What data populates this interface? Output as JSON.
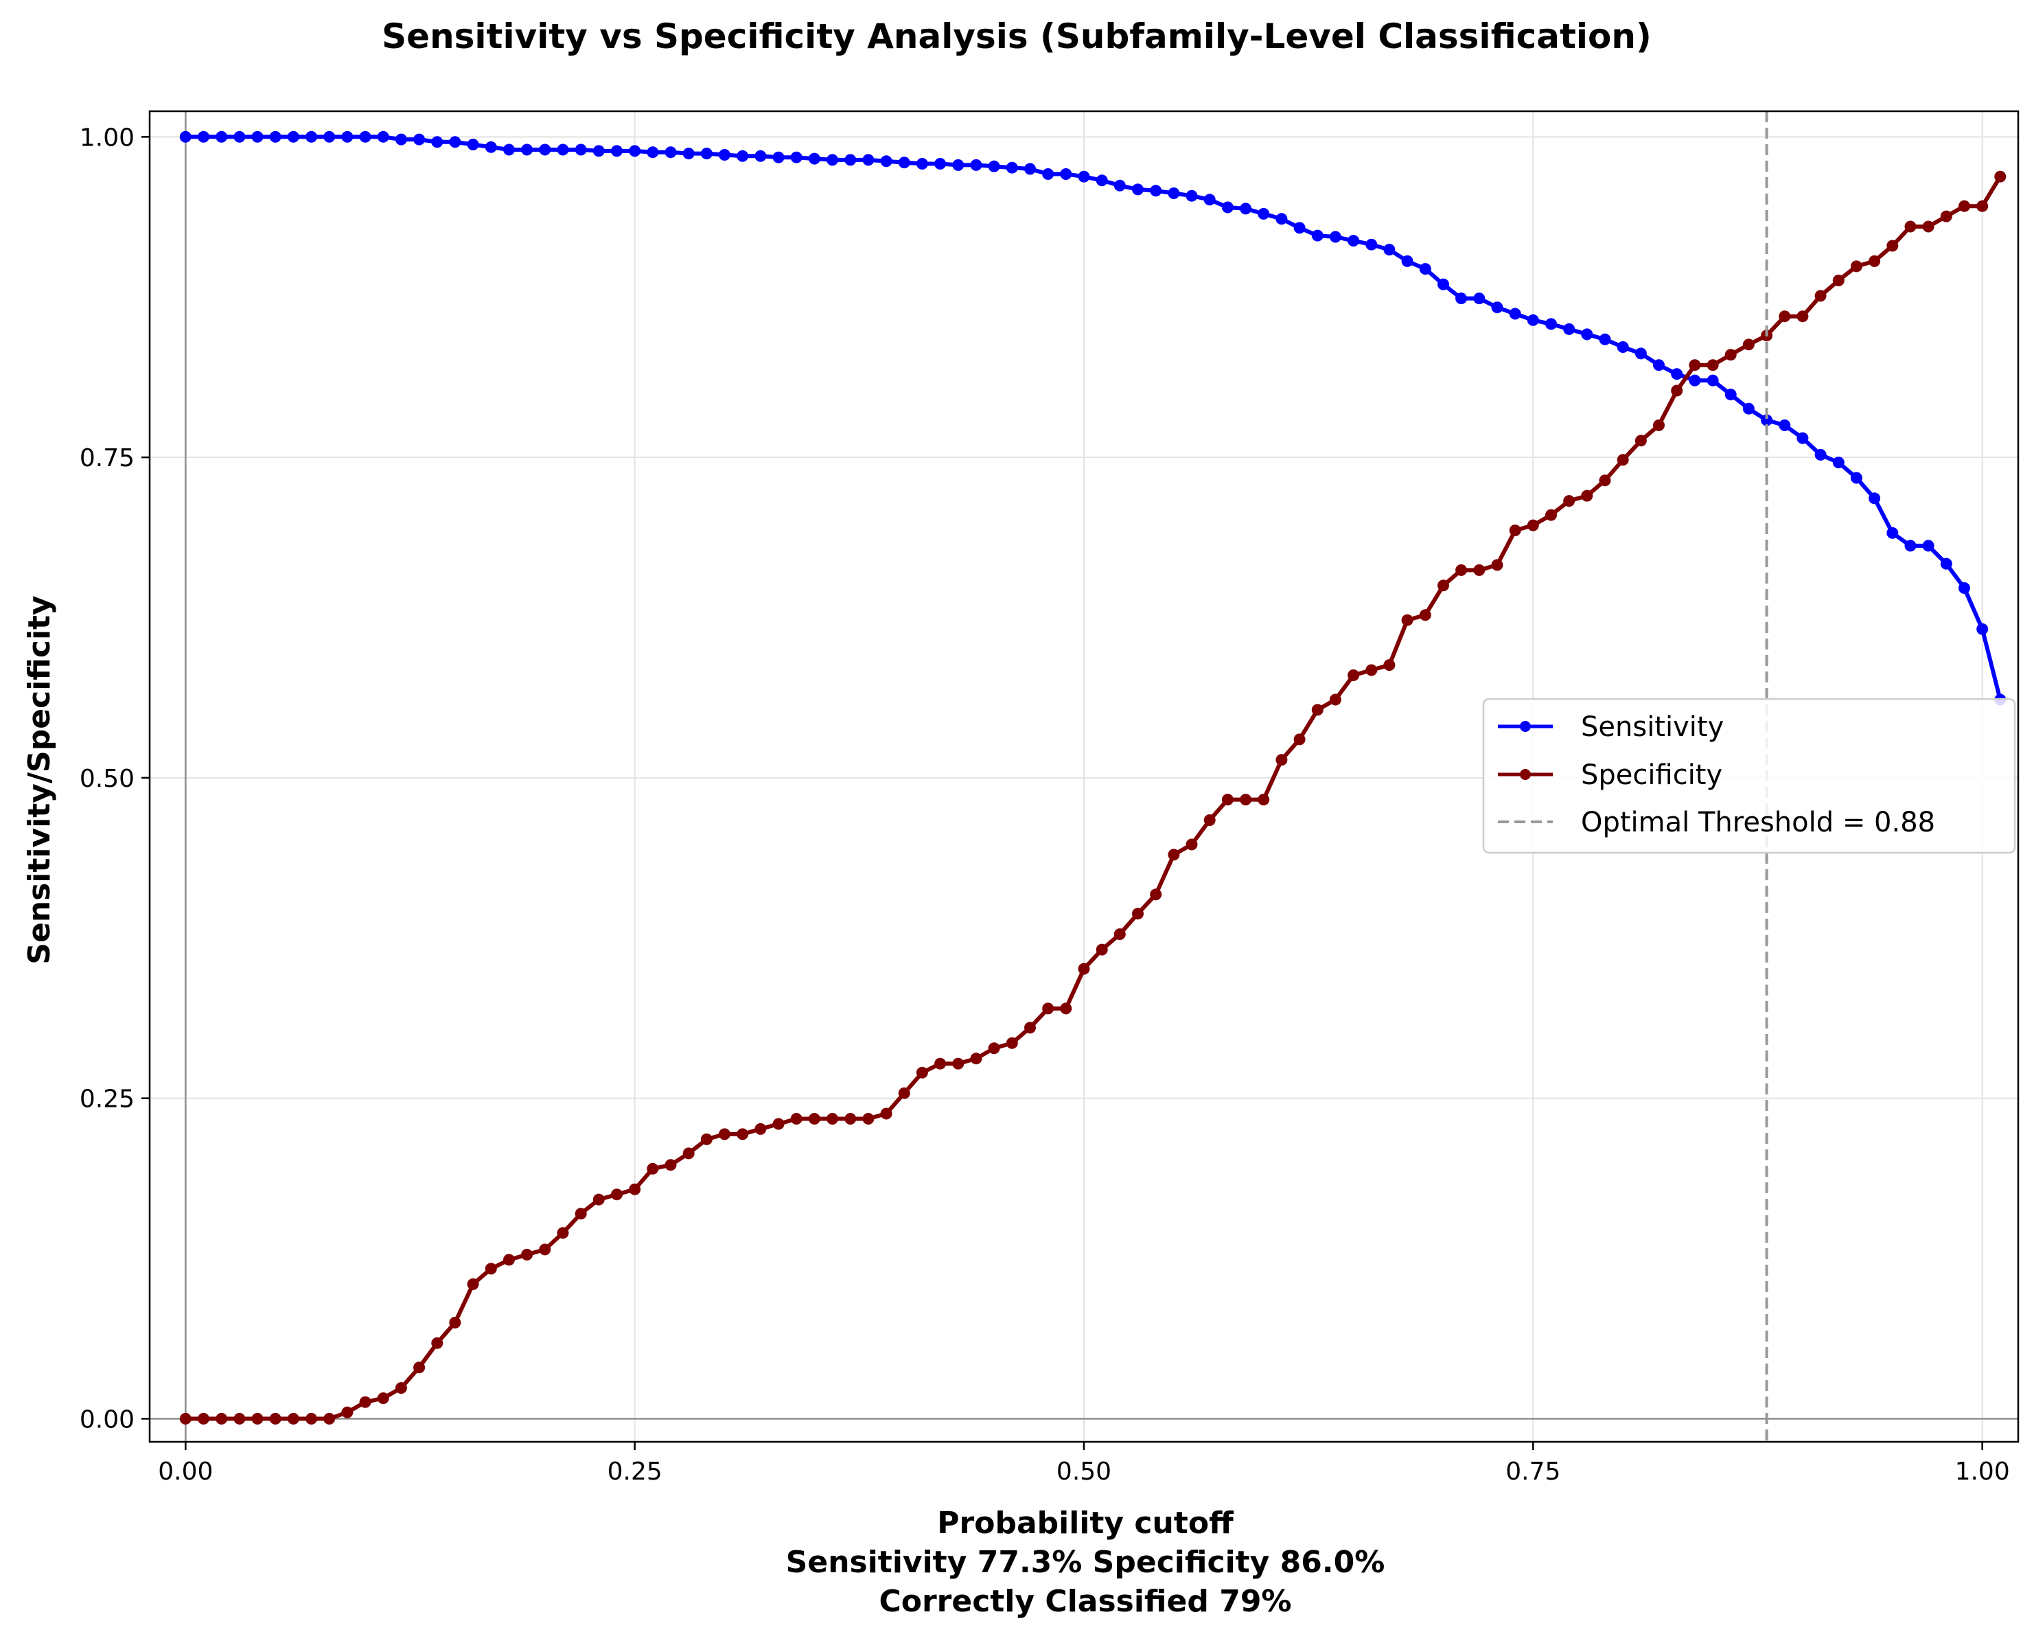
{
  "chart_data": {
    "type": "line",
    "title": "Sensitivity vs Specificity Analysis (Subfamily-Level Classification)",
    "xlabel_lines": [
      "Probability cutoff",
      "Sensitivity 77.3% Specificity 86.0%",
      "Correctly Classified 79%"
    ],
    "ylabel": "Sensitivity/Specificity",
    "xlim": [
      -0.02,
      1.02
    ],
    "ylim": [
      -0.018,
      1.02
    ],
    "xticks": [
      0.0,
      0.25,
      0.5,
      0.75,
      1.0
    ],
    "xtick_labels": [
      "0.00",
      "0.25",
      "0.50",
      "0.75",
      "1.00"
    ],
    "yticks": [
      0.0,
      0.25,
      0.5,
      0.75,
      1.0
    ],
    "ytick_labels": [
      "0.00",
      "0.25",
      "0.50",
      "0.75",
      "1.00"
    ],
    "grid": true,
    "legend_position": "center-right",
    "threshold": {
      "value": 0.88,
      "label": "Optimal Threshold = 0.88",
      "color": "#999999"
    },
    "x_start": 0.0,
    "x_step": 0.01,
    "series": [
      {
        "name": "Sensitivity",
        "color": "#0000ff",
        "values": [
          1.0,
          1.0,
          1.0,
          1.0,
          1.0,
          1.0,
          1.0,
          1.0,
          1.0,
          1.0,
          1.0,
          1.0,
          0.998,
          0.998,
          0.996,
          0.996,
          0.994,
          0.992,
          0.99,
          0.99,
          0.99,
          0.99,
          0.99,
          0.989,
          0.989,
          0.989,
          0.988,
          0.988,
          0.987,
          0.987,
          0.986,
          0.985,
          0.985,
          0.984,
          0.984,
          0.983,
          0.982,
          0.982,
          0.982,
          0.981,
          0.98,
          0.979,
          0.979,
          0.978,
          0.978,
          0.977,
          0.976,
          0.975,
          0.971,
          0.971,
          0.969,
          0.966,
          0.962,
          0.959,
          0.958,
          0.956,
          0.954,
          0.951,
          0.945,
          0.944,
          0.94,
          0.936,
          0.929,
          0.923,
          0.922,
          0.919,
          0.916,
          0.912,
          0.903,
          0.897,
          0.885,
          0.874,
          0.874,
          0.867,
          0.862,
          0.857,
          0.854,
          0.85,
          0.846,
          0.842,
          0.836,
          0.831,
          0.822,
          0.815,
          0.81,
          0.81,
          0.799,
          0.788,
          0.779,
          0.775,
          0.765,
          0.752,
          0.746,
          0.734,
          0.718,
          0.691,
          0.681,
          0.681,
          0.667,
          0.648,
          0.616,
          0.561
        ]
      },
      {
        "name": "Specificity",
        "color": "#800000",
        "values": [
          0.0,
          0.0,
          0.0,
          0.0,
          0.0,
          0.0,
          0.0,
          0.0,
          0.0,
          0.005,
          0.013,
          0.016,
          0.024,
          0.04,
          0.059,
          0.075,
          0.105,
          0.117,
          0.124,
          0.128,
          0.132,
          0.145,
          0.16,
          0.171,
          0.175,
          0.179,
          0.195,
          0.198,
          0.207,
          0.218,
          0.222,
          0.222,
          0.226,
          0.23,
          0.234,
          0.234,
          0.234,
          0.234,
          0.234,
          0.238,
          0.254,
          0.27,
          0.277,
          0.277,
          0.281,
          0.289,
          0.293,
          0.305,
          0.32,
          0.32,
          0.351,
          0.366,
          0.378,
          0.394,
          0.409,
          0.44,
          0.448,
          0.467,
          0.483,
          0.483,
          0.483,
          0.514,
          0.53,
          0.553,
          0.561,
          0.58,
          0.584,
          0.588,
          0.623,
          0.627,
          0.65,
          0.662,
          0.662,
          0.666,
          0.693,
          0.697,
          0.705,
          0.716,
          0.72,
          0.732,
          0.748,
          0.763,
          0.775,
          0.802,
          0.822,
          0.822,
          0.83,
          0.838,
          0.845,
          0.86,
          0.86,
          0.876,
          0.888,
          0.899,
          0.903,
          0.915,
          0.93,
          0.93,
          0.938,
          0.946,
          0.946,
          0.969
        ]
      }
    ]
  }
}
